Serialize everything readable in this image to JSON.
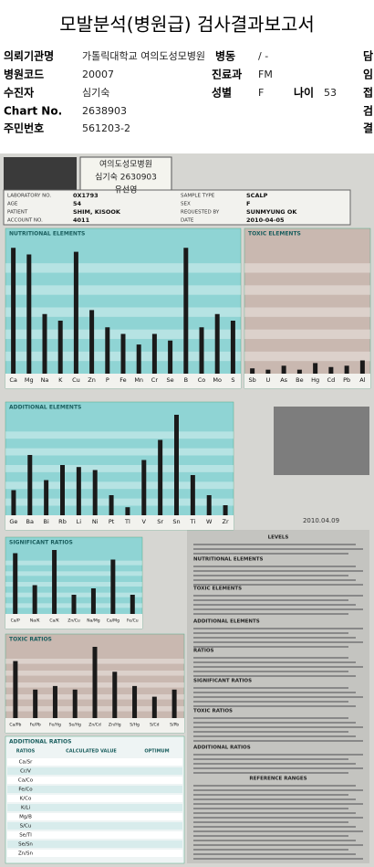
{
  "header": {
    "title": "모발분석(병원급) 검사결과보고서",
    "institution_label": "의뢰기관명",
    "institution": "가톨릭대학교 여의도성모병원",
    "ward_label": "병동",
    "ward": "/ -",
    "code_label": "병원코드",
    "code": "20007",
    "dept_label": "진료과",
    "dept": "FM",
    "patient_label": "수진자",
    "patient": "심기숙",
    "sex_label": "성별",
    "sex": "F",
    "age_label": "나이",
    "age": "53",
    "chart_label": "Chart No.",
    "chart": "2638903",
    "rrn_label": "주민번호",
    "rrn": "561203-2",
    "side": [
      "담",
      "임",
      "접",
      "검",
      "결"
    ]
  },
  "scan": {
    "handwritten": [
      "여의도성모병원",
      "심기숙 2630903",
      "유선영"
    ],
    "lab": [
      [
        "LABORATORY NO.",
        "0X1793"
      ],
      [
        "SAMPLE TYPE",
        "SCALP"
      ],
      [
        "AGE",
        "54"
      ],
      [
        "SEX",
        "F"
      ],
      [
        "PATIENT",
        "SHIM, KISOOK"
      ],
      [
        "REQUESTED BY",
        "SUNMYUNG OK"
      ],
      [
        "ACCOUNT NO.",
        "4011"
      ],
      [
        "DATE",
        "2010-04-05"
      ]
    ],
    "panels": [
      {
        "title": "NUTRITIONAL ELEMENTS",
        "names": [
          "Ca",
          "Mg",
          "Na",
          "K",
          "Cu",
          "Zn",
          "P",
          "Fe",
          "Mn",
          "Cr",
          "Se",
          "B",
          "Co",
          "Mo",
          "S"
        ],
        "levels": [
          95,
          90,
          45,
          40,
          92,
          48,
          35,
          30,
          22,
          30,
          25,
          95,
          35,
          45,
          40
        ]
      },
      {
        "title": "TOXIC ELEMENTS",
        "names": [
          "Sb",
          "U",
          "As",
          "Be",
          "Hg",
          "Cd",
          "Pb",
          "Al"
        ],
        "levels": [
          4,
          3,
          6,
          3,
          8,
          5,
          6,
          10
        ]
      },
      {
        "title": "ADDITIONAL ELEMENTS",
        "names": [
          "Ge",
          "Ba",
          "Bi",
          "Rb",
          "Li",
          "Ni",
          "Pt",
          "Tl",
          "V",
          "Sr",
          "Sn",
          "Ti",
          "W",
          "Zr"
        ],
        "levels": [
          25,
          60,
          35,
          50,
          48,
          45,
          20,
          8,
          55,
          75,
          100,
          40,
          20,
          10
        ]
      },
      {
        "title": "SIGNIFICANT RATIOS",
        "names": [
          "Ca/P",
          "Na/K",
          "Ca/K",
          "Zn/Cu",
          "Na/Mg",
          "Ca/Mg",
          "Fe/Cu"
        ],
        "levels": [
          95,
          45,
          100,
          30,
          40,
          85,
          30
        ]
      },
      {
        "title": "TOXIC RATIOS",
        "names": [
          "Ca/Pb",
          "Fe/Pb",
          "Fe/Hg",
          "Se/Hg",
          "Zn/Cd",
          "Zn/Hg",
          "S/Hg",
          "S/Cd",
          "S/Pb"
        ],
        "levels": [
          80,
          40,
          45,
          40,
          100,
          65,
          45,
          30,
          40
        ]
      }
    ],
    "stamp_date": "2010.04.09",
    "ratios_title": "ADDITIONAL RATIOS",
    "ratios_head": [
      "RATIOS",
      "CALCULATED VALUE",
      "OPTIMUM"
    ],
    "ratios": [
      "Ca/Sr",
      "Cr/V",
      "Ca/Co",
      "Fe/Co",
      "K/Co",
      "K/Li",
      "Mg/B",
      "S/Cu",
      "Se/Tl",
      "Se/Sn",
      "Zn/Sn"
    ],
    "notes": [
      "LEVELS",
      "NUTRITIONAL ELEMENTS",
      "TOXIC ELEMENTS",
      "ADDITIONAL ELEMENTS",
      "RATIOS",
      "SIGNIFICANT RATIOS",
      "TOXIC RATIOS",
      "ADDITIONAL RATIOS",
      "REFERENCE RANGES"
    ]
  }
}
